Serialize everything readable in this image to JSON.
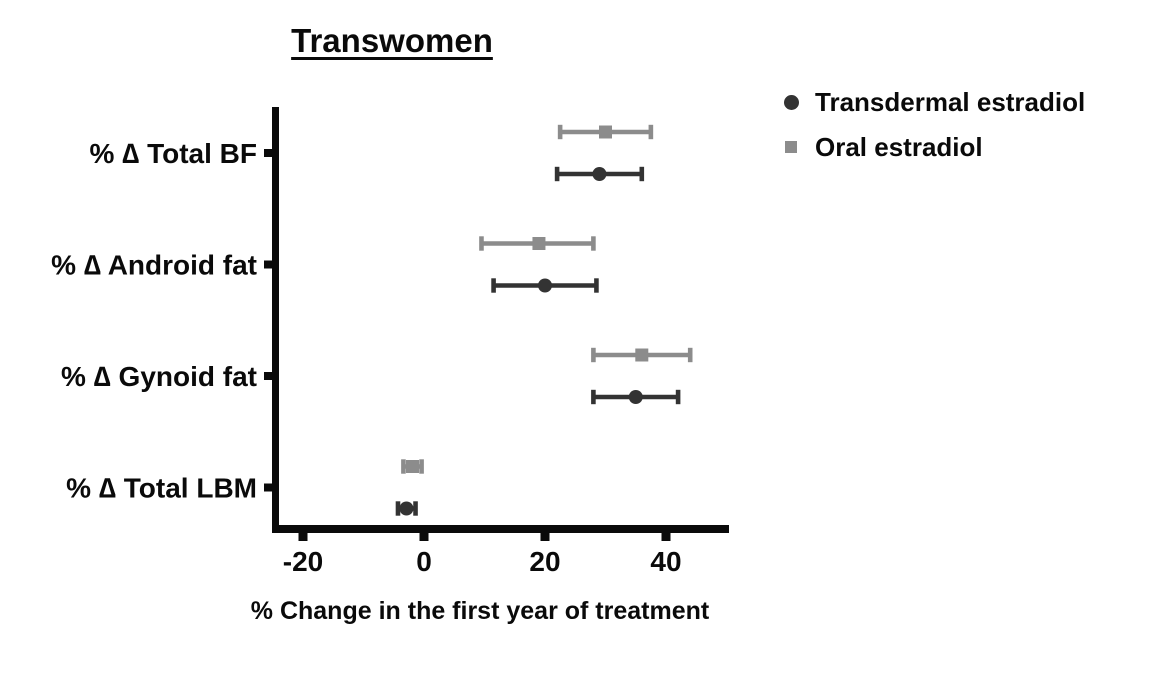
{
  "title": "Transwomen",
  "x_axis_title": "% Change in the first year of treatment",
  "legend": {
    "items": [
      {
        "label": "Transdermal estradiol",
        "marker": "circle",
        "color": "#333333"
      },
      {
        "label": "Oral estradiol",
        "marker": "square",
        "color": "#8c8c8c"
      }
    ]
  },
  "chart_data": {
    "type": "scatter",
    "subtype": "forest-dot-plot-with-error-bars",
    "title": "Transwomen",
    "xlabel": "% Change in the first year of treatment",
    "categories": [
      "% ∆ Total BF",
      "% ∆ Android fat",
      "% ∆ Gynoid fat",
      "% ∆ Total LBM"
    ],
    "x_ticks": [
      -20,
      0,
      20,
      40
    ],
    "xlim": [
      -25,
      50.5
    ],
    "grid": false,
    "legend_position": "top-right",
    "axis_color": "#0a0a0a",
    "series": [
      {
        "name": "Transdermal estradiol",
        "marker": "circle",
        "color": "#333333",
        "values": [
          29,
          20,
          35,
          -2.9
        ],
        "ci_low": [
          22,
          11.5,
          28,
          -4.3
        ],
        "ci_high": [
          36,
          28.5,
          42,
          -1.4
        ]
      },
      {
        "name": "Oral estradiol",
        "marker": "square",
        "color": "#8c8c8c",
        "values": [
          30,
          19,
          36,
          -1.9
        ],
        "ci_low": [
          22.5,
          9.5,
          28,
          -3.4
        ],
        "ci_high": [
          37.5,
          28,
          44,
          -0.4
        ]
      }
    ]
  }
}
